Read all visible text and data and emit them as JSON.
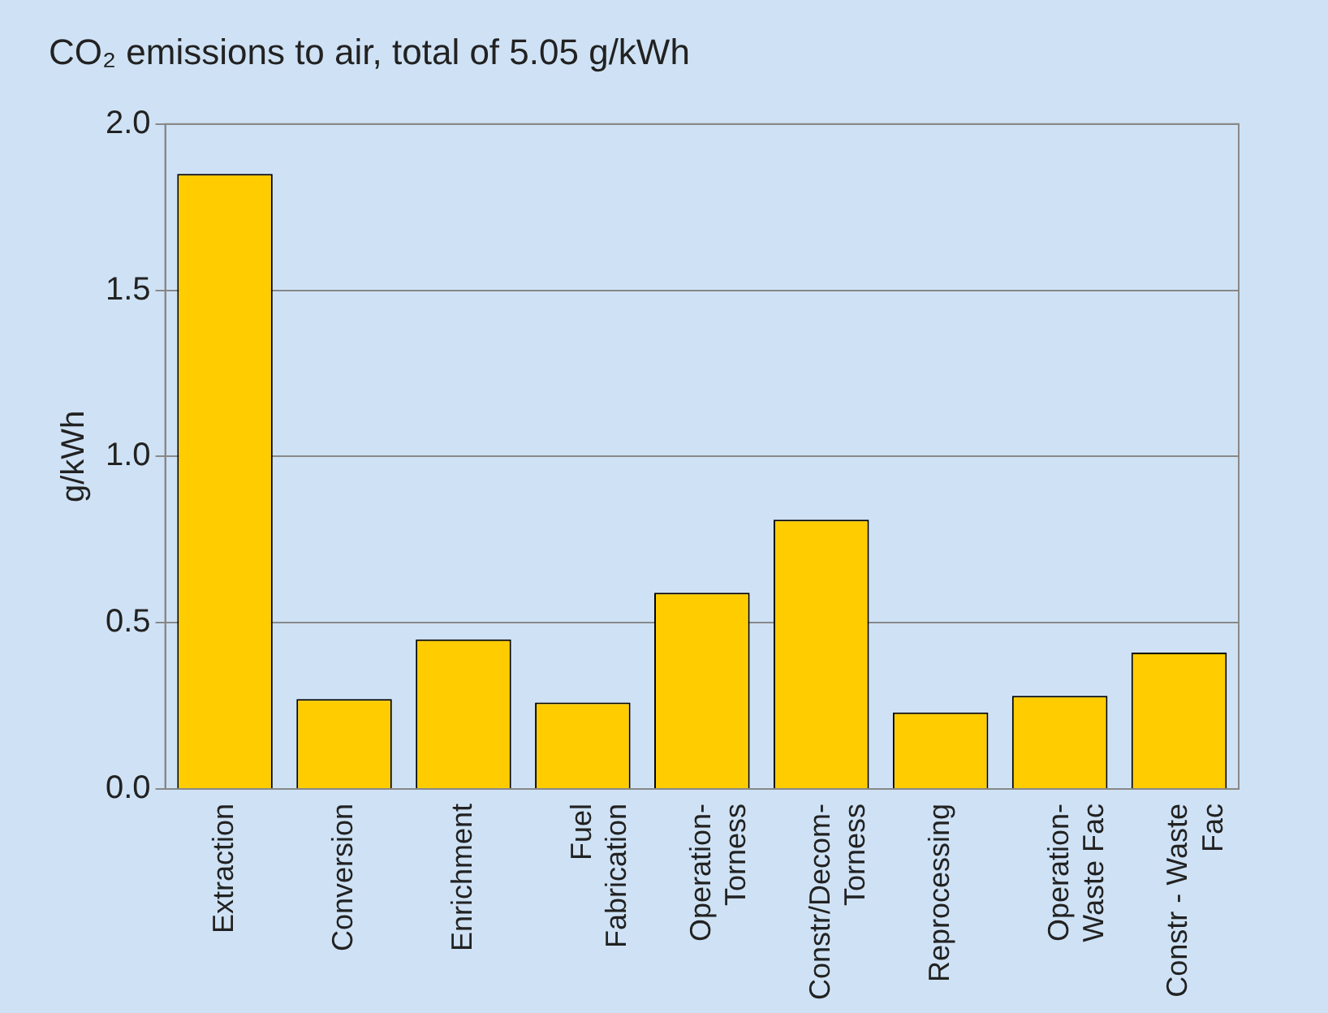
{
  "chart_data": {
    "type": "bar",
    "title": "CO₂ emissions to air, total of 5.05 g/kWh",
    "ylabel": "g/kWh",
    "categories": [
      "Extraction",
      "Conversion",
      "Enrichment",
      "Fuel\nFabrication",
      "Operation-\nTorness",
      "Constr/Decom-\nTorness",
      "Reprocessing",
      "Operation-\nWaste Fac",
      "Constr - Waste\nFac"
    ],
    "values": [
      1.85,
      0.27,
      0.45,
      0.26,
      0.59,
      0.81,
      0.23,
      0.28,
      0.41
    ],
    "color": "#ffcc00",
    "ylim": [
      0,
      2
    ],
    "yticks": [
      {
        "value": 0,
        "label": "0.0"
      },
      {
        "value": 0.5,
        "label": "0.5"
      },
      {
        "value": 1,
        "label": "1.0"
      },
      {
        "value": 1.5,
        "label": "1.5"
      },
      {
        "value": 2,
        "label": "2.0"
      }
    ],
    "grid": "y"
  }
}
